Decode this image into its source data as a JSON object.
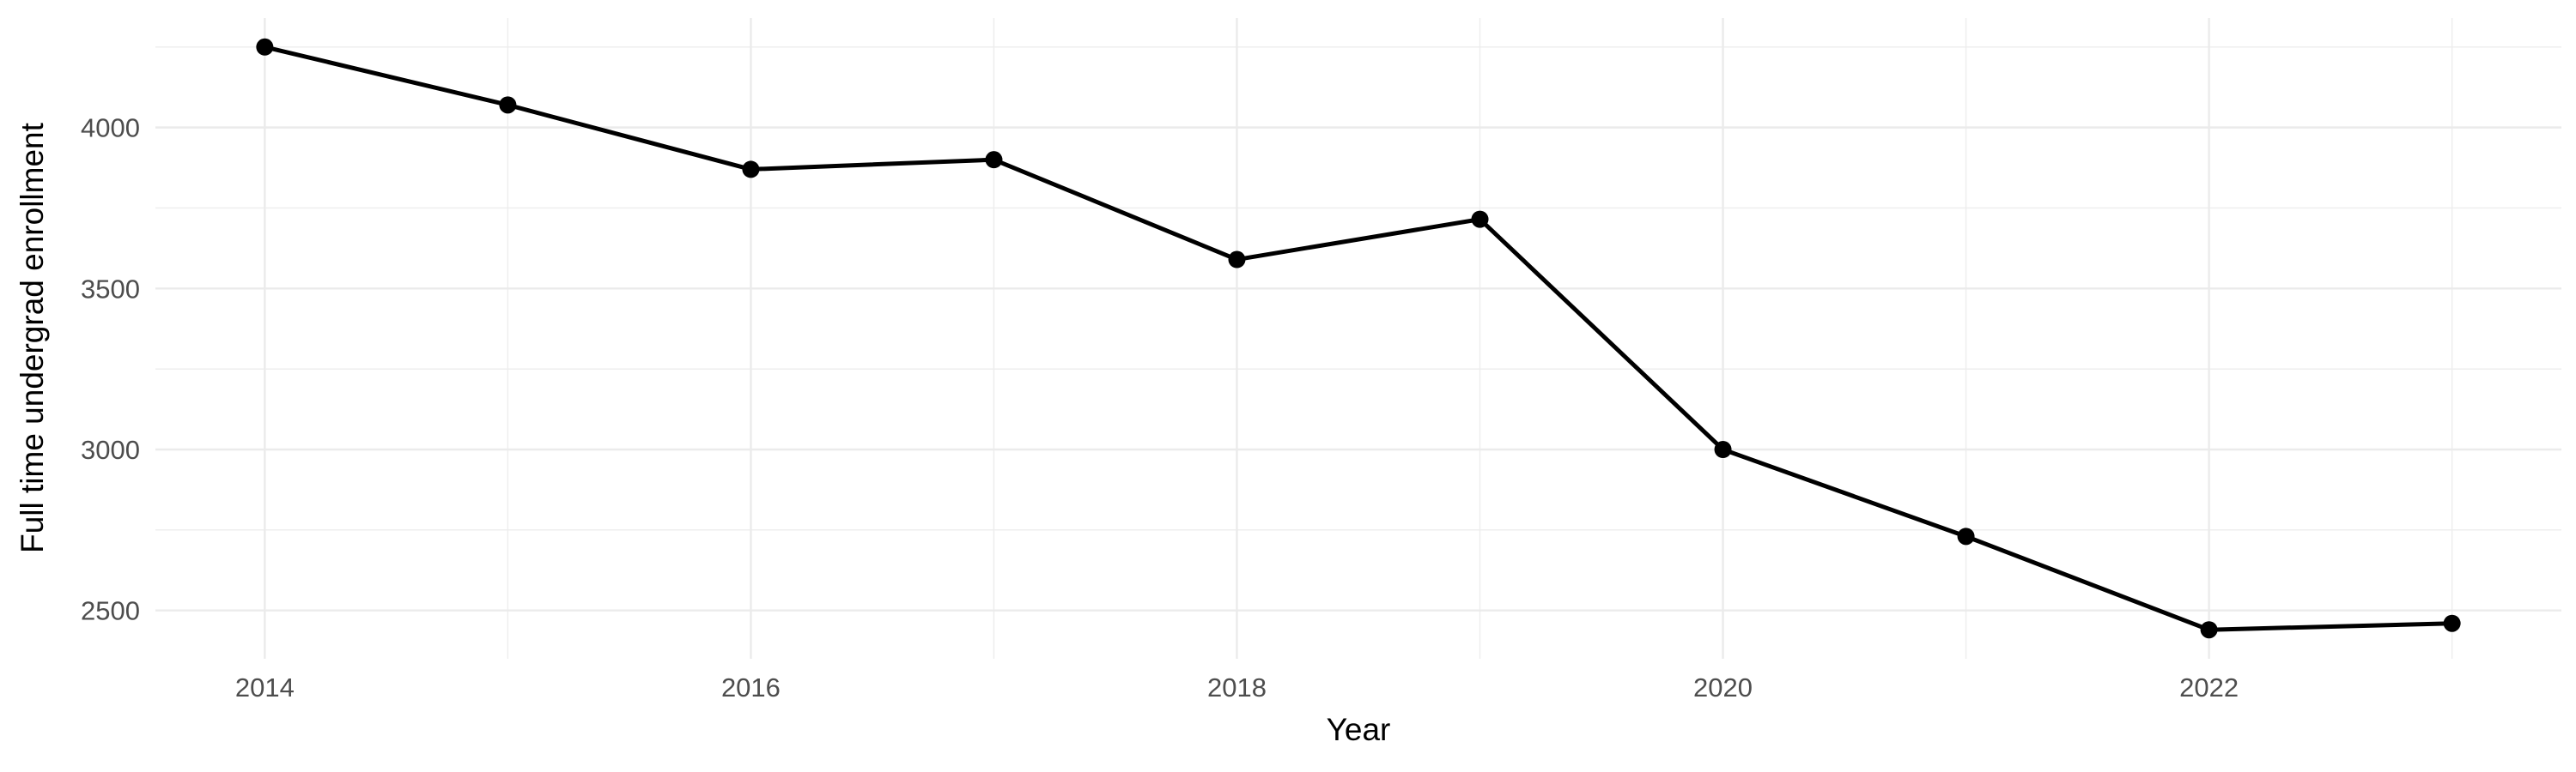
{
  "chart_data": {
    "type": "line",
    "title": "",
    "xlabel": "Year",
    "ylabel": "Full time undergrad enrollment",
    "series": [
      {
        "name": "Full time undergrad enrollment",
        "x": [
          2014,
          2015,
          2016,
          2017,
          2018,
          2019,
          2020,
          2021,
          2022,
          2023
        ],
        "values": [
          4250,
          4070,
          3870,
          3900,
          3590,
          3715,
          3000,
          2730,
          2440,
          2460
        ]
      }
    ],
    "x_major_ticks": [
      2014,
      2016,
      2018,
      2020,
      2022
    ],
    "x_tick_labels": [
      "2014",
      "2016",
      "2018",
      "2020",
      "2022"
    ],
    "x_minor_ticks": [
      2015,
      2017,
      2019,
      2021,
      2023
    ],
    "y_major_ticks": [
      2500,
      3000,
      3500,
      4000
    ],
    "y_tick_labels": [
      "2500",
      "3000",
      "3500",
      "4000"
    ],
    "y_minor_ticks": [
      2750,
      3250,
      3750,
      4250
    ],
    "xlim": [
      2013.55,
      2023.45
    ],
    "ylim": [
      2350,
      4340
    ],
    "grid": true,
    "legend_position": "none",
    "style": {
      "line_color": "#000000",
      "point_color": "#000000",
      "grid_major_color": "#EBEBEB",
      "grid_minor_color": "#EDEDED",
      "tick_label_color": "#4D4D4D",
      "axis_title_color": "#000000",
      "background_color": "#FFFFFF"
    }
  }
}
